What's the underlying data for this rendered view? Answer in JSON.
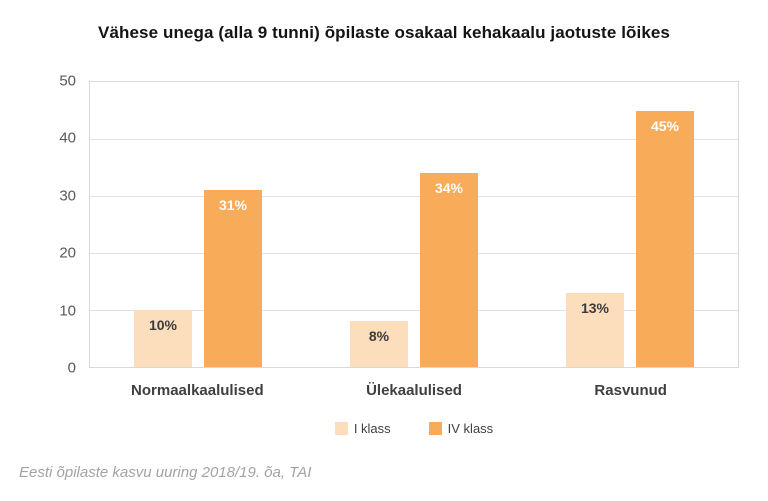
{
  "title": "Vähese unega (alla 9 tunni) õpilaste osakaal kehakaalu jaotuste lõikes",
  "source_note": "Eesti õpilaste kasvu uuring 2018/19. õa, TAI",
  "colors": {
    "background": "#FFFFFF",
    "series_light": "#FCDEBC",
    "series_dark": "#F8AC5A",
    "gridline": "#E2E2E2",
    "plot_border": "#D9D9D9",
    "tick_text": "#595959",
    "category_text": "#3F3F3F",
    "title_text": "#141414",
    "source_text": "#A3A3A3"
  },
  "chart_data": {
    "type": "bar",
    "title": "Vähese unega (alla 9 tunni) õpilaste osakaal kehakaalu jaotuste lõikes",
    "categories": [
      "Normaalkaalulised",
      "Ülekaalulised",
      "Rasvunud"
    ],
    "series": [
      {
        "name": "I klass",
        "values": [
          10,
          8,
          13
        ],
        "labels": [
          "10%",
          "8%",
          "13%"
        ],
        "color": "#FCDEBC",
        "label_color": "#3B3B3B"
      },
      {
        "name": "IV klass",
        "values": [
          31,
          34,
          45
        ],
        "labels": [
          "31%",
          "34%",
          "45%"
        ],
        "color": "#F8AC5A",
        "label_color": "#FFFFFF"
      }
    ],
    "xlabel": "",
    "ylabel": "",
    "ylim": [
      0,
      50
    ],
    "yticks": [
      0,
      10,
      20,
      30,
      40,
      50
    ],
    "grid": true,
    "legend_position": "bottom"
  }
}
